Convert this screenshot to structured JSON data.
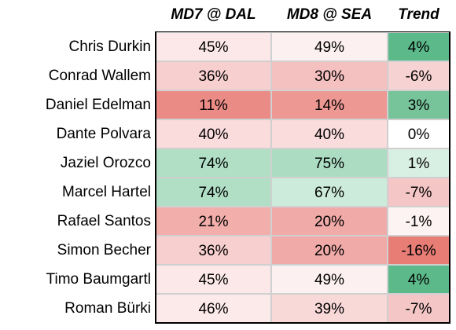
{
  "table": {
    "header": [
      "MD7 @ DAL",
      "MD8 @ SEA",
      "Trend"
    ],
    "rows": [
      {
        "name": "Chris Durkin",
        "cells": [
          {
            "text": "45%",
            "color": "#fce8e8"
          },
          {
            "text": "49%",
            "color": "#fdf0f0"
          },
          {
            "text": "4%",
            "color": "#5cb98a"
          }
        ]
      },
      {
        "name": "Conrad Wallem",
        "cells": [
          {
            "text": "36%",
            "color": "#f8cfcf"
          },
          {
            "text": "30%",
            "color": "#f5c0c0"
          },
          {
            "text": "-6%",
            "color": "#f7d2d2"
          }
        ]
      },
      {
        "name": "Daniel Edelman",
        "cells": [
          {
            "text": "11%",
            "color": "#eb8b86"
          },
          {
            "text": "14%",
            "color": "#ee9893"
          },
          {
            "text": "3%",
            "color": "#77c49b"
          }
        ]
      },
      {
        "name": "Dante Polvara",
        "cells": [
          {
            "text": "40%",
            "color": "#fbdcdc"
          },
          {
            "text": "40%",
            "color": "#fbdcdc"
          },
          {
            "text": "0%",
            "color": "#ffffff"
          }
        ]
      },
      {
        "name": "Jaziel Orozco",
        "cells": [
          {
            "text": "74%",
            "color": "#b0dfc6"
          },
          {
            "text": "75%",
            "color": "#acddc3"
          },
          {
            "text": "1%",
            "color": "#d8efe3"
          }
        ]
      },
      {
        "name": "Marcel Hartel",
        "cells": [
          {
            "text": "74%",
            "color": "#b0dfc6"
          },
          {
            "text": "67%",
            "color": "#cdebda"
          },
          {
            "text": "-7%",
            "color": "#f5c6c6"
          }
        ]
      },
      {
        "name": "Rafael Santos",
        "cells": [
          {
            "text": "21%",
            "color": "#f1aeab"
          },
          {
            "text": "20%",
            "color": "#f0aaa7"
          },
          {
            "text": "-1%",
            "color": "#fdf3f3"
          }
        ]
      },
      {
        "name": "Simon Becher",
        "cells": [
          {
            "text": "36%",
            "color": "#f8cfcf"
          },
          {
            "text": "20%",
            "color": "#f0aaa7"
          },
          {
            "text": "-16%",
            "color": "#e87d76"
          }
        ]
      },
      {
        "name": "Timo Baumgartl",
        "cells": [
          {
            "text": "45%",
            "color": "#fce8e8"
          },
          {
            "text": "49%",
            "color": "#fdf0f0"
          },
          {
            "text": "4%",
            "color": "#5cb98a"
          }
        ]
      },
      {
        "name": "Roman Bürki",
        "cells": [
          {
            "text": "46%",
            "color": "#fce9e9"
          },
          {
            "text": "39%",
            "color": "#f9d8d8"
          },
          {
            "text": "-7%",
            "color": "#f5c6c6"
          }
        ]
      }
    ]
  }
}
